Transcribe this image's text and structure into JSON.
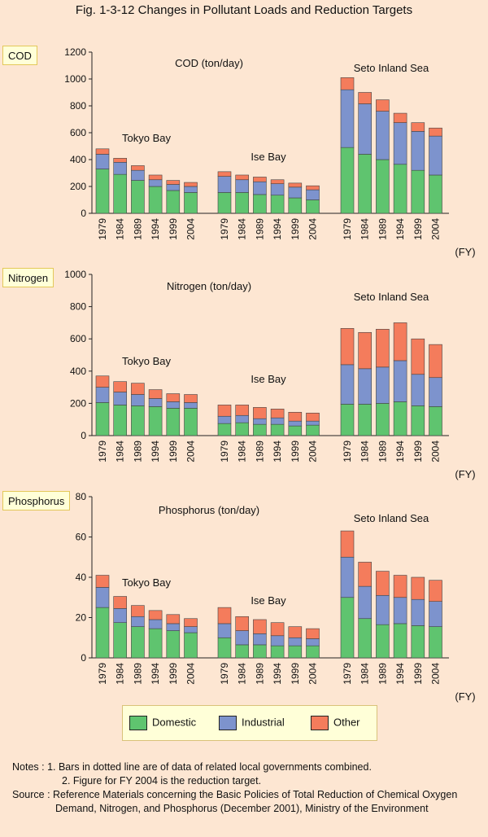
{
  "title": "Fig. 1-3-12  Changes in Pollutant Loads and Reduction Targets",
  "colors": {
    "Domestic": "#5fc46f",
    "Industrial": "#7d93cd",
    "Other": "#f47c5c"
  },
  "legend": [
    {
      "label": "Domestic",
      "color": "#5fc46f"
    },
    {
      "label": "Industrial",
      "color": "#7d93cd"
    },
    {
      "label": "Other",
      "color": "#f47c5c"
    }
  ],
  "notes": [
    "Notes : 1. Bars in dotted line are of data of related local governments combined.",
    "2. Figure for FY 2004 is the reduction target.",
    "Source : Reference Materials concerning the Basic Policies of Total Reduction of Chemical Oxygen",
    "Demand, Nitrogen, and Phosphorus (December 2001), Ministry of the Environment"
  ],
  "chart_data": [
    {
      "type": "bar",
      "stacked": true,
      "tag": "COD",
      "title": "COD (ton/day)",
      "ylim": [
        0,
        1200
      ],
      "yticks": [
        0,
        200,
        400,
        600,
        800,
        1000,
        1200
      ],
      "xunit": "(FY)",
      "series_names": [
        "Domestic",
        "Industrial",
        "Other"
      ],
      "groups": [
        {
          "name": "Tokyo Bay",
          "categories": [
            "1979",
            "1984",
            "1989",
            "1994",
            "1999",
            "2004"
          ],
          "Domestic": [
            330,
            290,
            245,
            200,
            170,
            155
          ],
          "Industrial": [
            110,
            90,
            75,
            50,
            45,
            45
          ],
          "Other": [
            40,
            30,
            35,
            35,
            30,
            30
          ]
        },
        {
          "name": "Ise Bay",
          "categories": [
            "1979",
            "1984",
            "1989",
            "1994",
            "1999",
            "2004"
          ],
          "Domestic": [
            155,
            155,
            140,
            135,
            115,
            100
          ],
          "Industrial": [
            120,
            95,
            95,
            85,
            80,
            75
          ],
          "Other": [
            35,
            35,
            35,
            30,
            30,
            30
          ]
        },
        {
          "name": "Seto Inland Sea",
          "categories": [
            "1979",
            "1984",
            "1989",
            "1994",
            "1999",
            "2004"
          ],
          "Domestic": [
            490,
            440,
            400,
            365,
            320,
            285
          ],
          "Industrial": [
            430,
            375,
            360,
            310,
            290,
            290
          ],
          "Other": [
            90,
            85,
            85,
            70,
            65,
            60
          ]
        }
      ]
    },
    {
      "type": "bar",
      "stacked": true,
      "tag": "Nitrogen",
      "title": "Nitrogen (ton/day)",
      "ylim": [
        0,
        1000
      ],
      "yticks": [
        0,
        200,
        400,
        600,
        800,
        1000
      ],
      "xunit": "(FY)",
      "series_names": [
        "Domestic",
        "Industrial",
        "Other"
      ],
      "groups": [
        {
          "name": "Tokyo Bay",
          "categories": [
            "1979",
            "1984",
            "1989",
            "1994",
            "1999",
            "2004"
          ],
          "Domestic": [
            205,
            190,
            185,
            180,
            170,
            170
          ],
          "Industrial": [
            95,
            80,
            70,
            50,
            40,
            35
          ],
          "Other": [
            70,
            65,
            70,
            55,
            50,
            50
          ]
        },
        {
          "name": "Ise Bay",
          "categories": [
            "1979",
            "1984",
            "1989",
            "1994",
            "1999",
            "2004"
          ],
          "Domestic": [
            75,
            80,
            70,
            70,
            60,
            65
          ],
          "Industrial": [
            45,
            45,
            35,
            40,
            30,
            25
          ],
          "Other": [
            70,
            65,
            70,
            55,
            55,
            50
          ]
        },
        {
          "name": "Seto Inland Sea",
          "categories": [
            "1979",
            "1984",
            "1989",
            "1994",
            "1999",
            "2004"
          ],
          "Domestic": [
            195,
            195,
            200,
            210,
            185,
            180
          ],
          "Industrial": [
            245,
            220,
            225,
            255,
            195,
            180
          ],
          "Other": [
            225,
            225,
            235,
            235,
            220,
            205
          ]
        }
      ]
    },
    {
      "type": "bar",
      "stacked": true,
      "tag": "Phosphorus",
      "title": "Phosphorus (ton/day)",
      "ylim": [
        0,
        80
      ],
      "yticks": [
        0,
        20,
        40,
        60,
        80
      ],
      "xunit": "(FY)",
      "series_names": [
        "Domestic",
        "Industrial",
        "Other"
      ],
      "groups": [
        {
          "name": "Tokyo Bay",
          "categories": [
            "1979",
            "1984",
            "1989",
            "1994",
            "1999",
            "2004"
          ],
          "Domestic": [
            25,
            17.5,
            15.5,
            14.5,
            13.5,
            12.5
          ],
          "Industrial": [
            10,
            7,
            5,
            4.5,
            3.5,
            3
          ],
          "Other": [
            6,
            6,
            5.5,
            4.5,
            4.5,
            4
          ]
        },
        {
          "name": "Ise Bay",
          "categories": [
            "1979",
            "1984",
            "1989",
            "1994",
            "1999",
            "2004"
          ],
          "Domestic": [
            10,
            6.5,
            6.5,
            6,
            6,
            6
          ],
          "Industrial": [
            7,
            7,
            5.5,
            5,
            4,
            3.5
          ],
          "Other": [
            8,
            7,
            7,
            6.5,
            5.5,
            5
          ]
        },
        {
          "name": "Seto Inland Sea",
          "categories": [
            "1979",
            "1984",
            "1989",
            "1994",
            "1999",
            "2004"
          ],
          "Domestic": [
            30,
            19.5,
            16.5,
            17,
            16,
            15.5
          ],
          "Industrial": [
            20,
            16,
            14.5,
            13,
            13,
            12.5
          ],
          "Other": [
            13,
            12,
            12,
            11,
            11,
            10.5
          ]
        }
      ]
    }
  ]
}
